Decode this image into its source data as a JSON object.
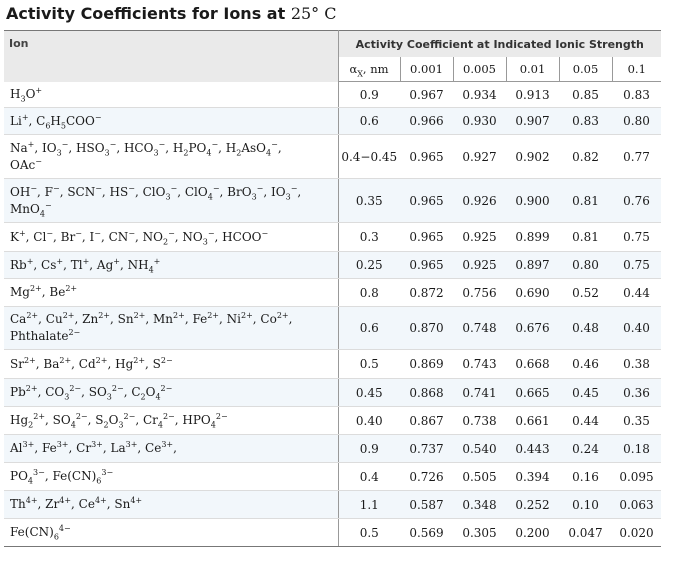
{
  "title": {
    "text": "Activity Coefficients for Ions at",
    "temperature": "25° C"
  },
  "header": {
    "ion": "Ion",
    "group": "Activity Coefficient at Indicated Ionic Strength",
    "alpha": "αX, nm",
    "strengths": [
      "0.001",
      "0.005",
      "0.01",
      "0.05",
      "0.1"
    ]
  },
  "rows": [
    {
      "ion": "H3O+",
      "alpha": "0.9",
      "values": [
        "0.967",
        "0.934",
        "0.913",
        "0.85",
        "0.83"
      ]
    },
    {
      "ion": "Li+, C6H5COO−",
      "alpha": "0.6",
      "values": [
        "0.966",
        "0.930",
        "0.907",
        "0.83",
        "0.80"
      ]
    },
    {
      "ion": "Na+, IO3−, HSO3−, HCO3−, H2PO4−, H2AsO4−, OAc−",
      "alpha": "0.4−0.45",
      "values": [
        "0.965",
        "0.927",
        "0.902",
        "0.82",
        "0.77"
      ]
    },
    {
      "ion": "OH−, F−, SCN−, HS−, ClO3−, ClO4−, BrO3−, IO3−, MnO4−",
      "alpha": "0.35",
      "values": [
        "0.965",
        "0.926",
        "0.900",
        "0.81",
        "0.76"
      ]
    },
    {
      "ion": "K+, Cl−, Br−, I−, CN−, NO2−, NO3−, HCOO−",
      "alpha": "0.3",
      "values": [
        "0.965",
        "0.925",
        "0.899",
        "0.81",
        "0.75"
      ]
    },
    {
      "ion": "Rb+, Cs+, Tl+, Ag+, NH4+",
      "alpha": "0.25",
      "values": [
        "0.965",
        "0.925",
        "0.897",
        "0.80",
        "0.75"
      ]
    },
    {
      "ion": "Mg2+, Be2+",
      "alpha": "0.8",
      "values": [
        "0.872",
        "0.756",
        "0.690",
        "0.52",
        "0.44"
      ]
    },
    {
      "ion": "Ca2+, Cu2+, Zn2+, Sn2+, Mn2+, Fe2+, Ni2+, Co2+, Phthalate2−",
      "alpha": "0.6",
      "values": [
        "0.870",
        "0.748",
        "0.676",
        "0.48",
        "0.40"
      ]
    },
    {
      "ion": "Sr2+, Ba2+, Cd2+, Hg2+, S2−",
      "alpha": "0.5",
      "values": [
        "0.869",
        "0.743",
        "0.668",
        "0.46",
        "0.38"
      ]
    },
    {
      "ion": "Pb2+, CO32−, SO32−, C2O42−",
      "alpha": "0.45",
      "values": [
        "0.868",
        "0.741",
        "0.665",
        "0.45",
        "0.36"
      ]
    },
    {
      "ion": "Hg22+, SO42−, S2O32−, Cr42−, HPO42−",
      "alpha": "0.40",
      "values": [
        "0.867",
        "0.738",
        "0.661",
        "0.44",
        "0.35"
      ]
    },
    {
      "ion": "Al3+, Fe3+, Cr3+, La3+, Ce3+,",
      "alpha": "0.9",
      "values": [
        "0.737",
        "0.540",
        "0.443",
        "0.24",
        "0.18"
      ]
    },
    {
      "ion": "PO43−, Fe(CN)63−",
      "alpha": "0.4",
      "values": [
        "0.726",
        "0.505",
        "0.394",
        "0.16",
        "0.095"
      ]
    },
    {
      "ion": "Th4+, Zr4+, Ce4+, Sn4+",
      "alpha": "1.1",
      "values": [
        "0.587",
        "0.348",
        "0.252",
        "0.10",
        "0.063"
      ]
    },
    {
      "ion": "Fe(CN)64−",
      "alpha": "0.5",
      "values": [
        "0.569",
        "0.305",
        "0.200",
        "0.047",
        "0.020"
      ]
    }
  ]
}
